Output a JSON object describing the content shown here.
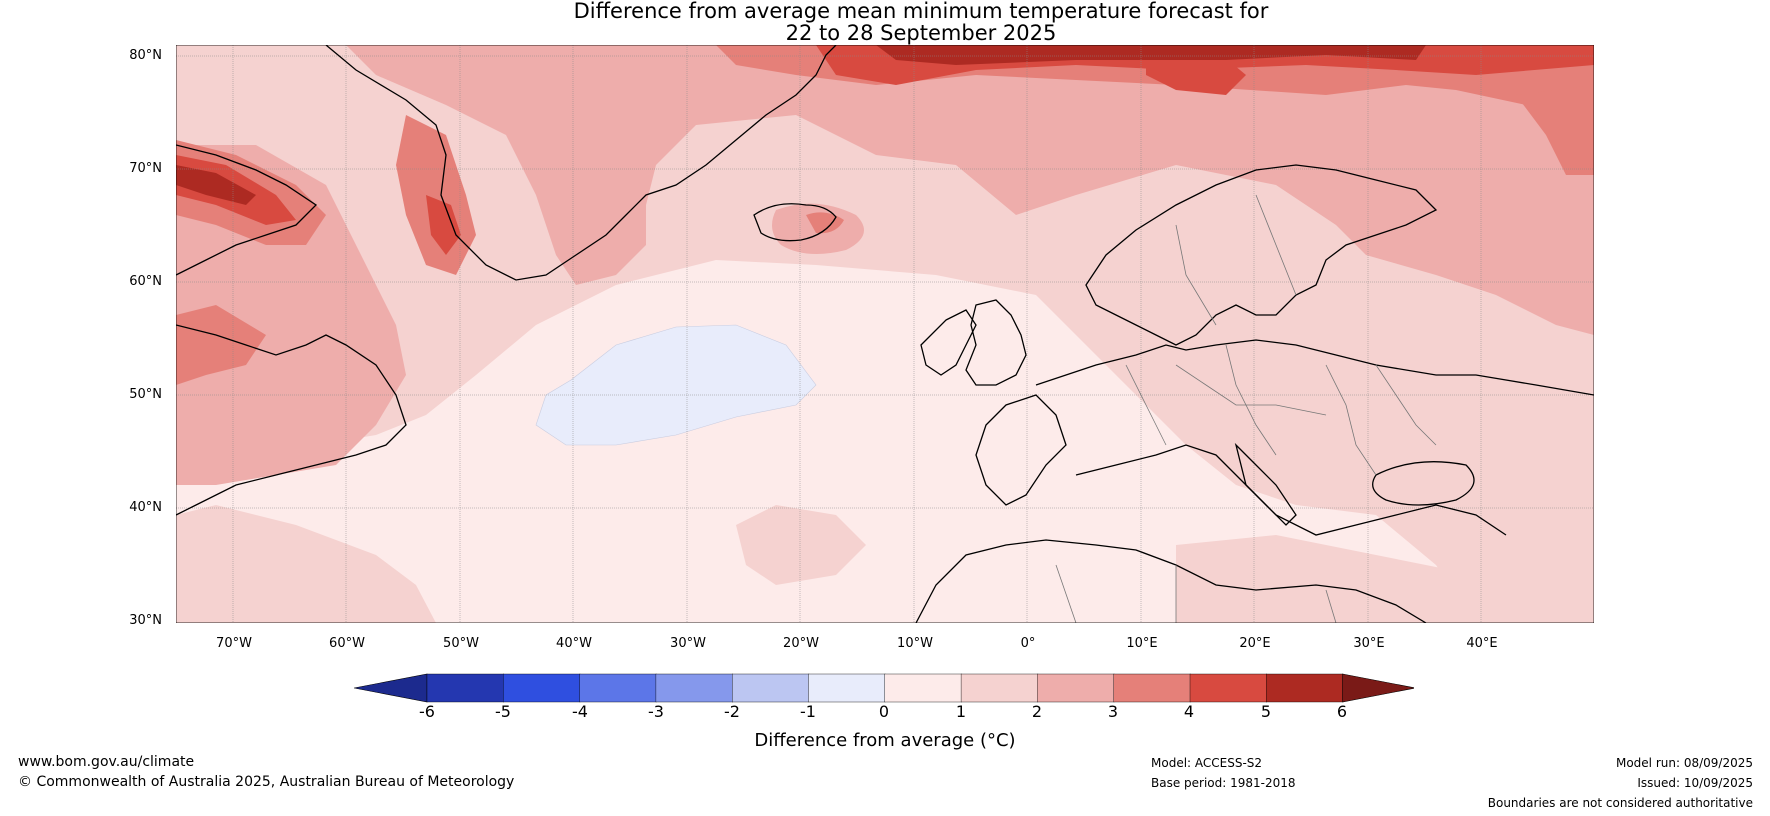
{
  "title": {
    "line1": "Difference from average mean minimum temperature forecast for",
    "line2": "22 to 28 September 2025"
  },
  "map": {
    "lat_labels": [
      "80°N",
      "70°N",
      "60°N",
      "50°N",
      "40°N",
      "30°N"
    ],
    "lon_labels": [
      "70°W",
      "60°W",
      "50°W",
      "40°W",
      "30°W",
      "20°W",
      "10°W",
      "0°",
      "10°E",
      "20°E",
      "30°E",
      "40°E"
    ],
    "extent": {
      "lon_min": -75,
      "lon_max": 50,
      "lat_min": 30,
      "lat_max": 81
    }
  },
  "colorbar": {
    "ticks": [
      "-6",
      "-5",
      "-4",
      "-3",
      "-2",
      "-1",
      "0",
      "1",
      "2",
      "3",
      "4",
      "5",
      "6"
    ],
    "colors": [
      "#1c2a8e",
      "#2437b0",
      "#2f4fe0",
      "#5c76e8",
      "#8598ec",
      "#bcc6f2",
      "#e8ecfb",
      "#fdebea",
      "#f5d2d0",
      "#eeadab",
      "#e58079",
      "#d84a40",
      "#ad2a22",
      "#7a1a17"
    ],
    "label": "Difference from average (°C)"
  },
  "footer": {
    "website": "www.bom.gov.au/climate",
    "copyright": "© Commonwealth of Australia 2025, Australian Bureau of Meteorology",
    "model": "Model: ACCESS-S2",
    "base_period": "Base period: 1981-2018",
    "model_run": "Model run: 08/09/2025",
    "issued": "Issued: 10/09/2025",
    "disclaimer": "Boundaries are not considered authoritative"
  }
}
